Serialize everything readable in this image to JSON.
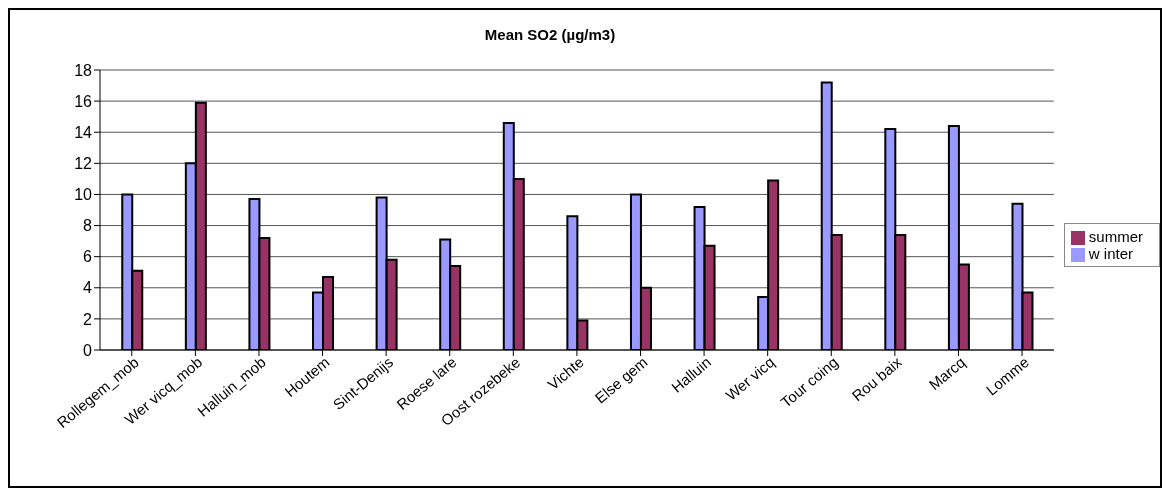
{
  "chart_data": {
    "type": "bar",
    "title": "Mean SO2 (µg/m3)",
    "categories": [
      "Rollegem_mob",
      "Wer vicq_mob",
      "Halluin_mob",
      "Houtem",
      "Sint-Denijs",
      "Roese lare",
      "Oost rozebeke",
      "Vichte",
      "Else gem",
      "Halluin",
      "Wer vicq",
      "Tour coing",
      "Rou baix",
      "Marcq",
      "Lomme"
    ],
    "series": [
      {
        "name": "w inter",
        "color": "#9999ff",
        "values": [
          10.0,
          12.0,
          9.7,
          3.7,
          9.8,
          7.1,
          14.6,
          8.6,
          10.0,
          9.2,
          3.4,
          17.2,
          14.2,
          14.4,
          9.4
        ]
      },
      {
        "name": "summer",
        "color": "#993366",
        "values": [
          5.1,
          15.9,
          7.2,
          4.7,
          5.8,
          5.4,
          11.0,
          1.9,
          4.0,
          6.7,
          10.9,
          7.4,
          7.4,
          5.5,
          3.7
        ]
      }
    ],
    "ylim": [
      0,
      18
    ],
    "yticks": [
      0,
      2,
      4,
      6,
      8,
      10,
      12,
      14,
      16,
      18
    ],
    "grid": "y",
    "legend": "right"
  }
}
